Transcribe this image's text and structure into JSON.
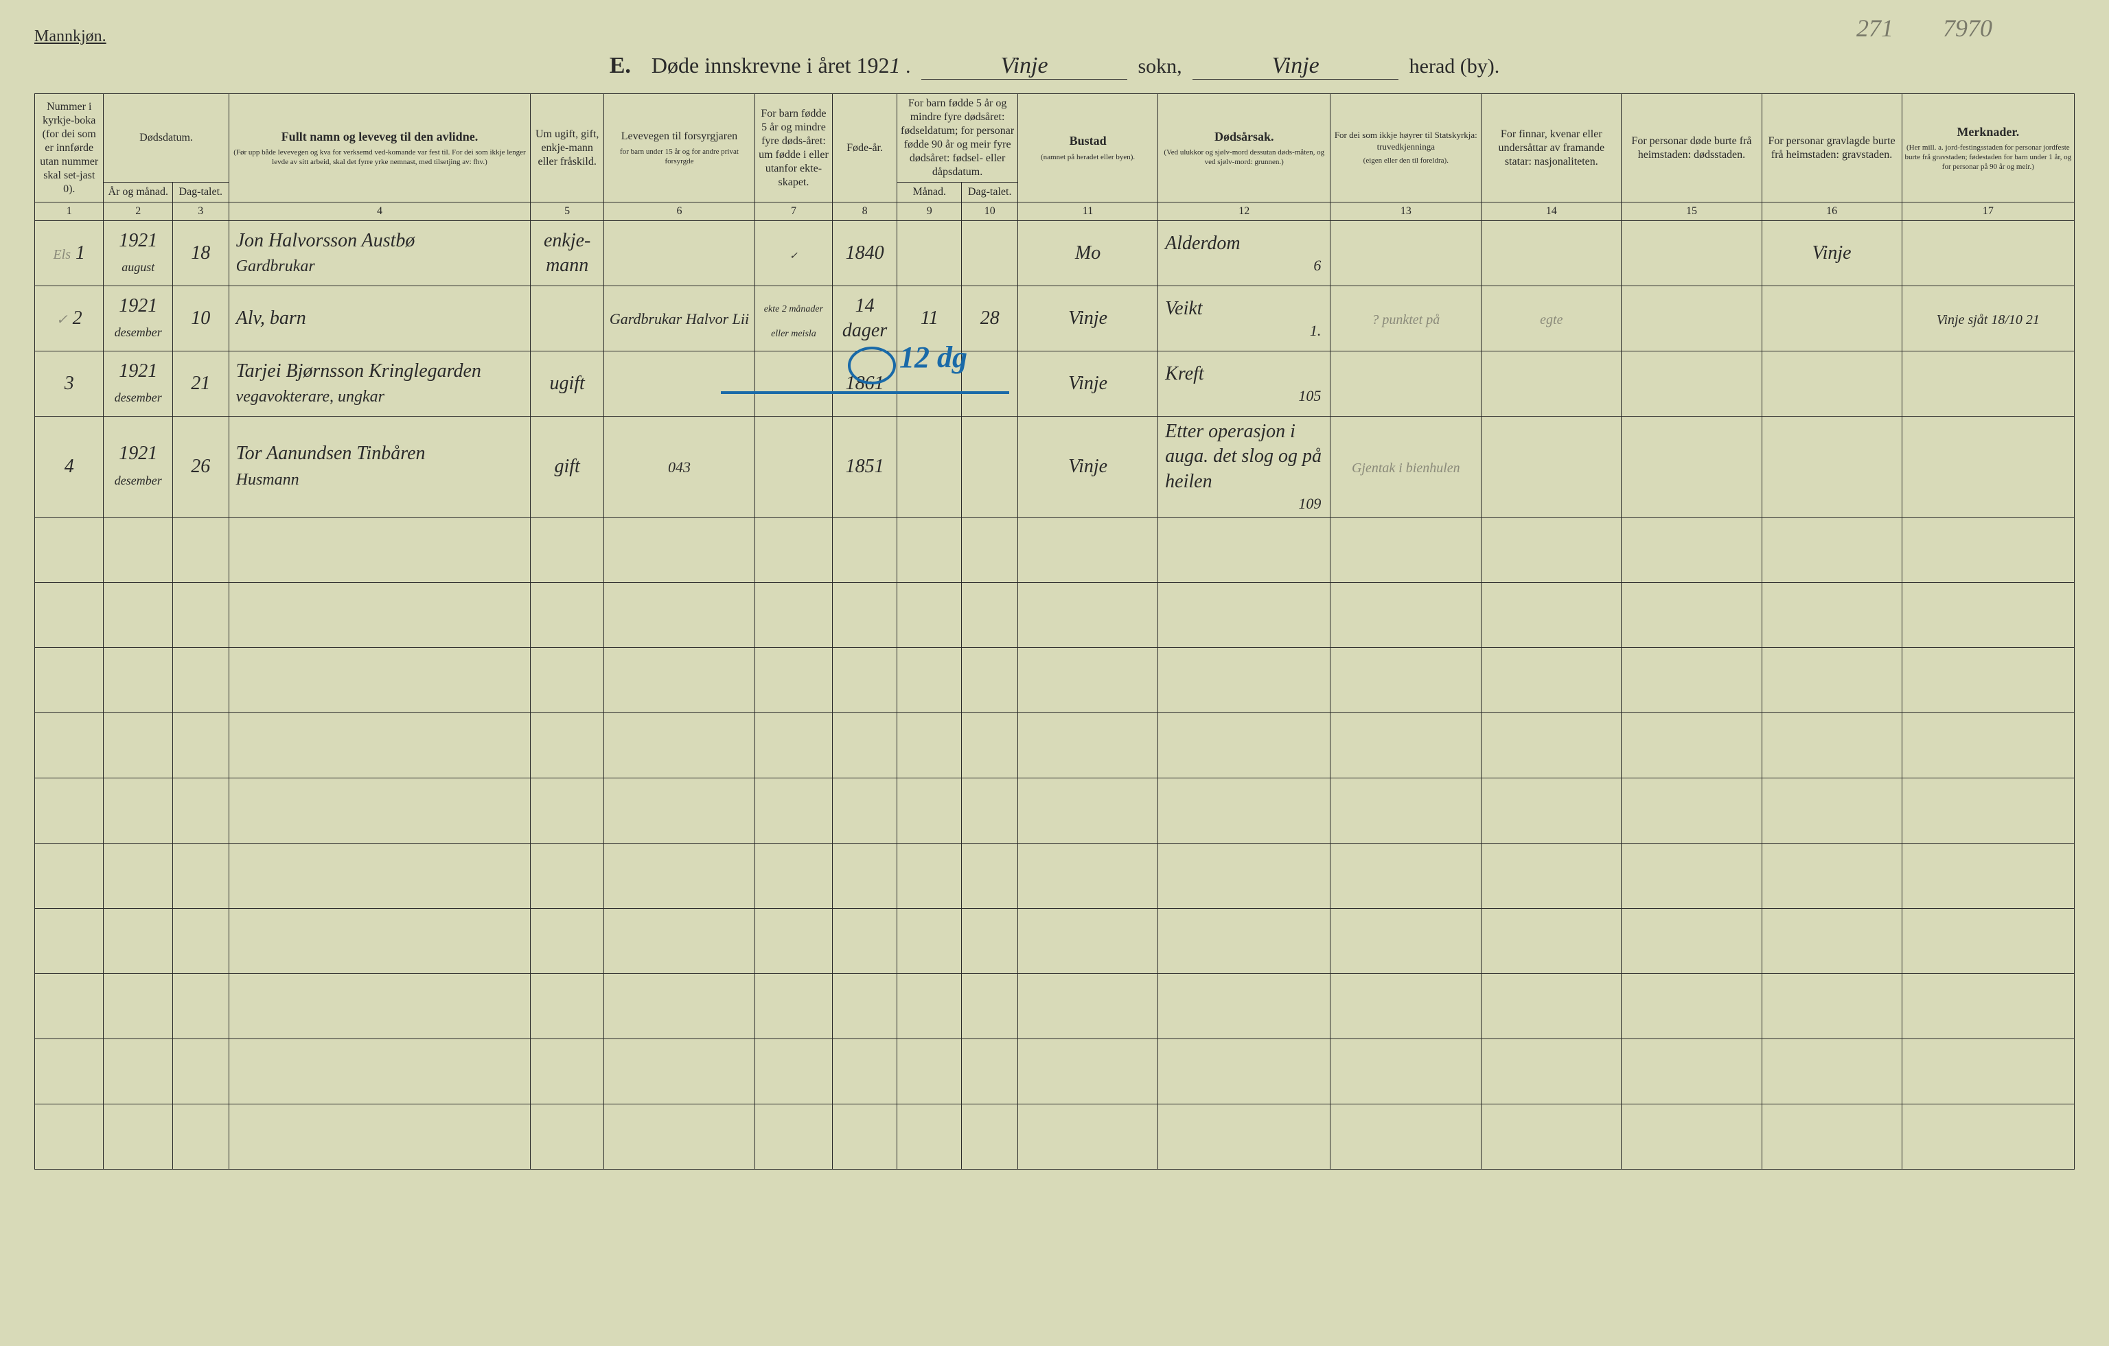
{
  "header": {
    "gender_label": "Mannkjøn.",
    "section_letter": "E.",
    "title_prefix": "Døde innskrevne i året 192",
    "year_digit": "1",
    "sokn_label": "sokn,",
    "herad_label": "herad (by).",
    "sokn_value": "Vinje",
    "herad_value": "Vinje",
    "pencil_271": "271",
    "pencil_7970": "7970"
  },
  "columns": {
    "c1": "Nummer i kyrkje-boka (for dei som er innførde utan nummer skal set-jast 0).",
    "c2_top": "Dødsdatum.",
    "c2": "År og månad.",
    "c3": "Dag-talet.",
    "c4_top": "Fullt namn og leveveg til den avlidne.",
    "c4_sub": "(Før upp både levevegen og kva for verksemd ved-komande var fest til. For dei som ikkje lenger levde av sitt arbeid, skal det fyrre yrke nemnast, med tilsetjing av: fhv.)",
    "c5": "Um ugift, gift, enkje-mann eller fråskild.",
    "c6_top": "Levevegen til forsyrgjaren",
    "c6_sub": "for barn under 15 år og for andre privat forsyrgde",
    "c7": "For barn fødde 5 år og mindre fyre døds-året: um fødde i eller utanfor ekte-skapet.",
    "c8": "Føde-år.",
    "c9_top": "For barn fødde 5 år og mindre fyre dødsåret: fødseldatum; for personar fødde 90 år og meir fyre dødsåret: fødsel- eller dåpsdatum.",
    "c9": "Månad.",
    "c10": "Dag-talet.",
    "c11_top": "Bustad",
    "c11_sub": "(namnet på heradet eller byen).",
    "c12_top": "Dødsårsak.",
    "c12_sub": "(Ved ulukkor og sjølv-mord dessutan døds-måten, og ved sjølv-mord: grunnen.)",
    "c13_top": "For dei som ikkje høyrer til Statskyrkja: truvedkjenninga",
    "c13_sub": "(eigen eller den til foreldra).",
    "c14": "For finnar, kvenar eller undersåttar av framande statar: nasjonaliteten.",
    "c15": "For personar døde burte frå heimstaden: dødsstaden.",
    "c16": "For personar gravlagde burte frå heimstaden: gravstaden.",
    "c17_top": "Merknader.",
    "c17_sub": "(Her mill. a. jord-festingsstaden for personar jordfeste burte frå gravstaden; fødestaden for barn under 1 år, og for personar på 90 år og meir.)"
  },
  "colnums": [
    "1",
    "2",
    "3",
    "4",
    "5",
    "6",
    "7",
    "8",
    "9",
    "10",
    "11",
    "12",
    "13",
    "14",
    "15",
    "16",
    "17"
  ],
  "rows": [
    {
      "num": "1",
      "margin": "Els",
      "year": "1921",
      "month": "august",
      "day": "18",
      "name": "Jon Halvorsson Austbø",
      "occ": "Gardbrukar",
      "status": "enkje-mann",
      "guardian": "",
      "legit": "✓",
      "birthyear": "1840",
      "bmon": "",
      "bday": "",
      "residence": "Mo",
      "cause": "Alderdom",
      "cause_num": "6",
      "col13": "",
      "col14": "",
      "col15": "",
      "gravsted": "Vinje",
      "remarks": ""
    },
    {
      "num": "2",
      "margin": "✓",
      "year": "1921",
      "month": "desember",
      "day": "10",
      "name": "Alv, barn",
      "occ": "",
      "status": "",
      "guardian": "Gardbrukar Halvor Lii",
      "legit": "ekte 2 månader eller meisla",
      "birthyear": "14 dager",
      "bmon": "11",
      "bday": "28",
      "residence": "Vinje",
      "cause": "Veikt",
      "cause_num": "1.",
      "col13": "? punktet på",
      "col14": "egte",
      "col15": "",
      "gravsted": "",
      "remarks": "Vinje sjåt 18/10 21"
    },
    {
      "num": "3",
      "margin": "",
      "year": "1921",
      "month": "desember",
      "day": "21",
      "name": "Tarjei Bjørnsson Kringlegarden",
      "occ": "vegavokterare, ungkar",
      "status": "ugift",
      "guardian": "",
      "legit": "",
      "birthyear": "1861",
      "bmon": "",
      "bday": "",
      "residence": "Vinje",
      "cause": "Kreft",
      "cause_num": "105",
      "col13": "",
      "col14": "",
      "col15": "",
      "gravsted": "",
      "remarks": ""
    },
    {
      "num": "4",
      "margin": "",
      "year": "1921",
      "month": "desember",
      "day": "26",
      "name": "Tor Aanundsen Tinbåren",
      "occ": "Husmann",
      "status": "gift",
      "guardian": "043",
      "legit": "",
      "birthyear": "1851",
      "bmon": "",
      "bday": "",
      "residence": "Vinje",
      "cause": "Etter operasjon i auga. det slog og på heilen",
      "cause_num": "109",
      "col13": "Gjentak i bienhulen",
      "col14": "",
      "col15": "",
      "gravsted": "",
      "remarks": ""
    }
  ],
  "blue": {
    "zero": "0",
    "twelve": "12 dg"
  },
  "colwidths": {
    "c1": "3.2%",
    "c2": "3.2%",
    "c3": "2.6%",
    "c4": "14%",
    "c5": "3.4%",
    "c6": "7%",
    "c7": "3.6%",
    "c8": "3%",
    "c9": "3%",
    "c10": "2.6%",
    "c11": "6.5%",
    "c12": "8%",
    "c13": "7%",
    "c14": "6.5%",
    "c15": "6.5%",
    "c16": "6.5%",
    "c17": "8%"
  },
  "empty_rows": 10,
  "colors": {
    "paper": "#d8dab8",
    "ink": "#2a2a2a",
    "pencil": "#7a7a6a",
    "blue": "#1a6aa8"
  }
}
